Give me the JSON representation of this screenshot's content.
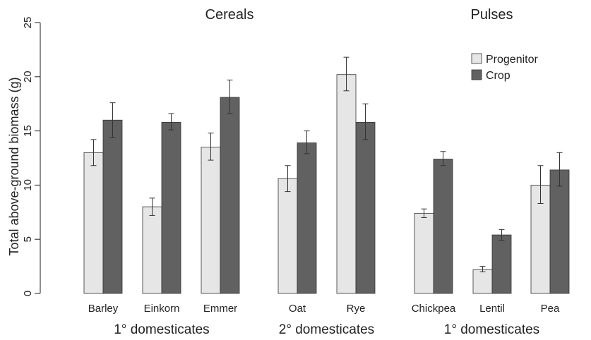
{
  "chart_data": {
    "type": "bar",
    "ylabel": "Total above-ground biomass (g)",
    "ylim": [
      0,
      25
    ],
    "yticks": [
      "0",
      "5",
      "10",
      "15",
      "20",
      "25"
    ],
    "panel_titles": [
      "Cereals",
      "Pulses"
    ],
    "group_labels": [
      "1° domesticates",
      "2° domesticates",
      "1° domesticates"
    ],
    "categories": [
      "Barley",
      "Einkorn",
      "Emmer",
      "Oat",
      "Rye",
      "Chickpea",
      "Lentil",
      "Pea"
    ],
    "legend_position": "top-right",
    "grid": false,
    "series": [
      {
        "name": "Progenitor",
        "color": "#e6e6e6",
        "values": [
          13.0,
          8.0,
          13.5,
          10.6,
          20.2,
          7.4,
          2.2,
          10.0
        ],
        "err_low": [
          11.8,
          7.2,
          12.3,
          9.4,
          18.7,
          7.0,
          2.0,
          8.3
        ],
        "err_high": [
          14.2,
          8.8,
          14.8,
          11.8,
          21.8,
          7.8,
          2.5,
          11.8
        ]
      },
      {
        "name": "Crop",
        "color": "#616161",
        "values": [
          16.0,
          15.8,
          18.1,
          13.9,
          15.8,
          12.4,
          5.4,
          11.4
        ],
        "err_low": [
          14.4,
          15.1,
          16.6,
          12.9,
          14.2,
          11.8,
          4.9,
          9.9
        ],
        "err_high": [
          17.6,
          16.6,
          19.7,
          15.0,
          17.5,
          13.1,
          5.9,
          13.0
        ]
      }
    ]
  }
}
